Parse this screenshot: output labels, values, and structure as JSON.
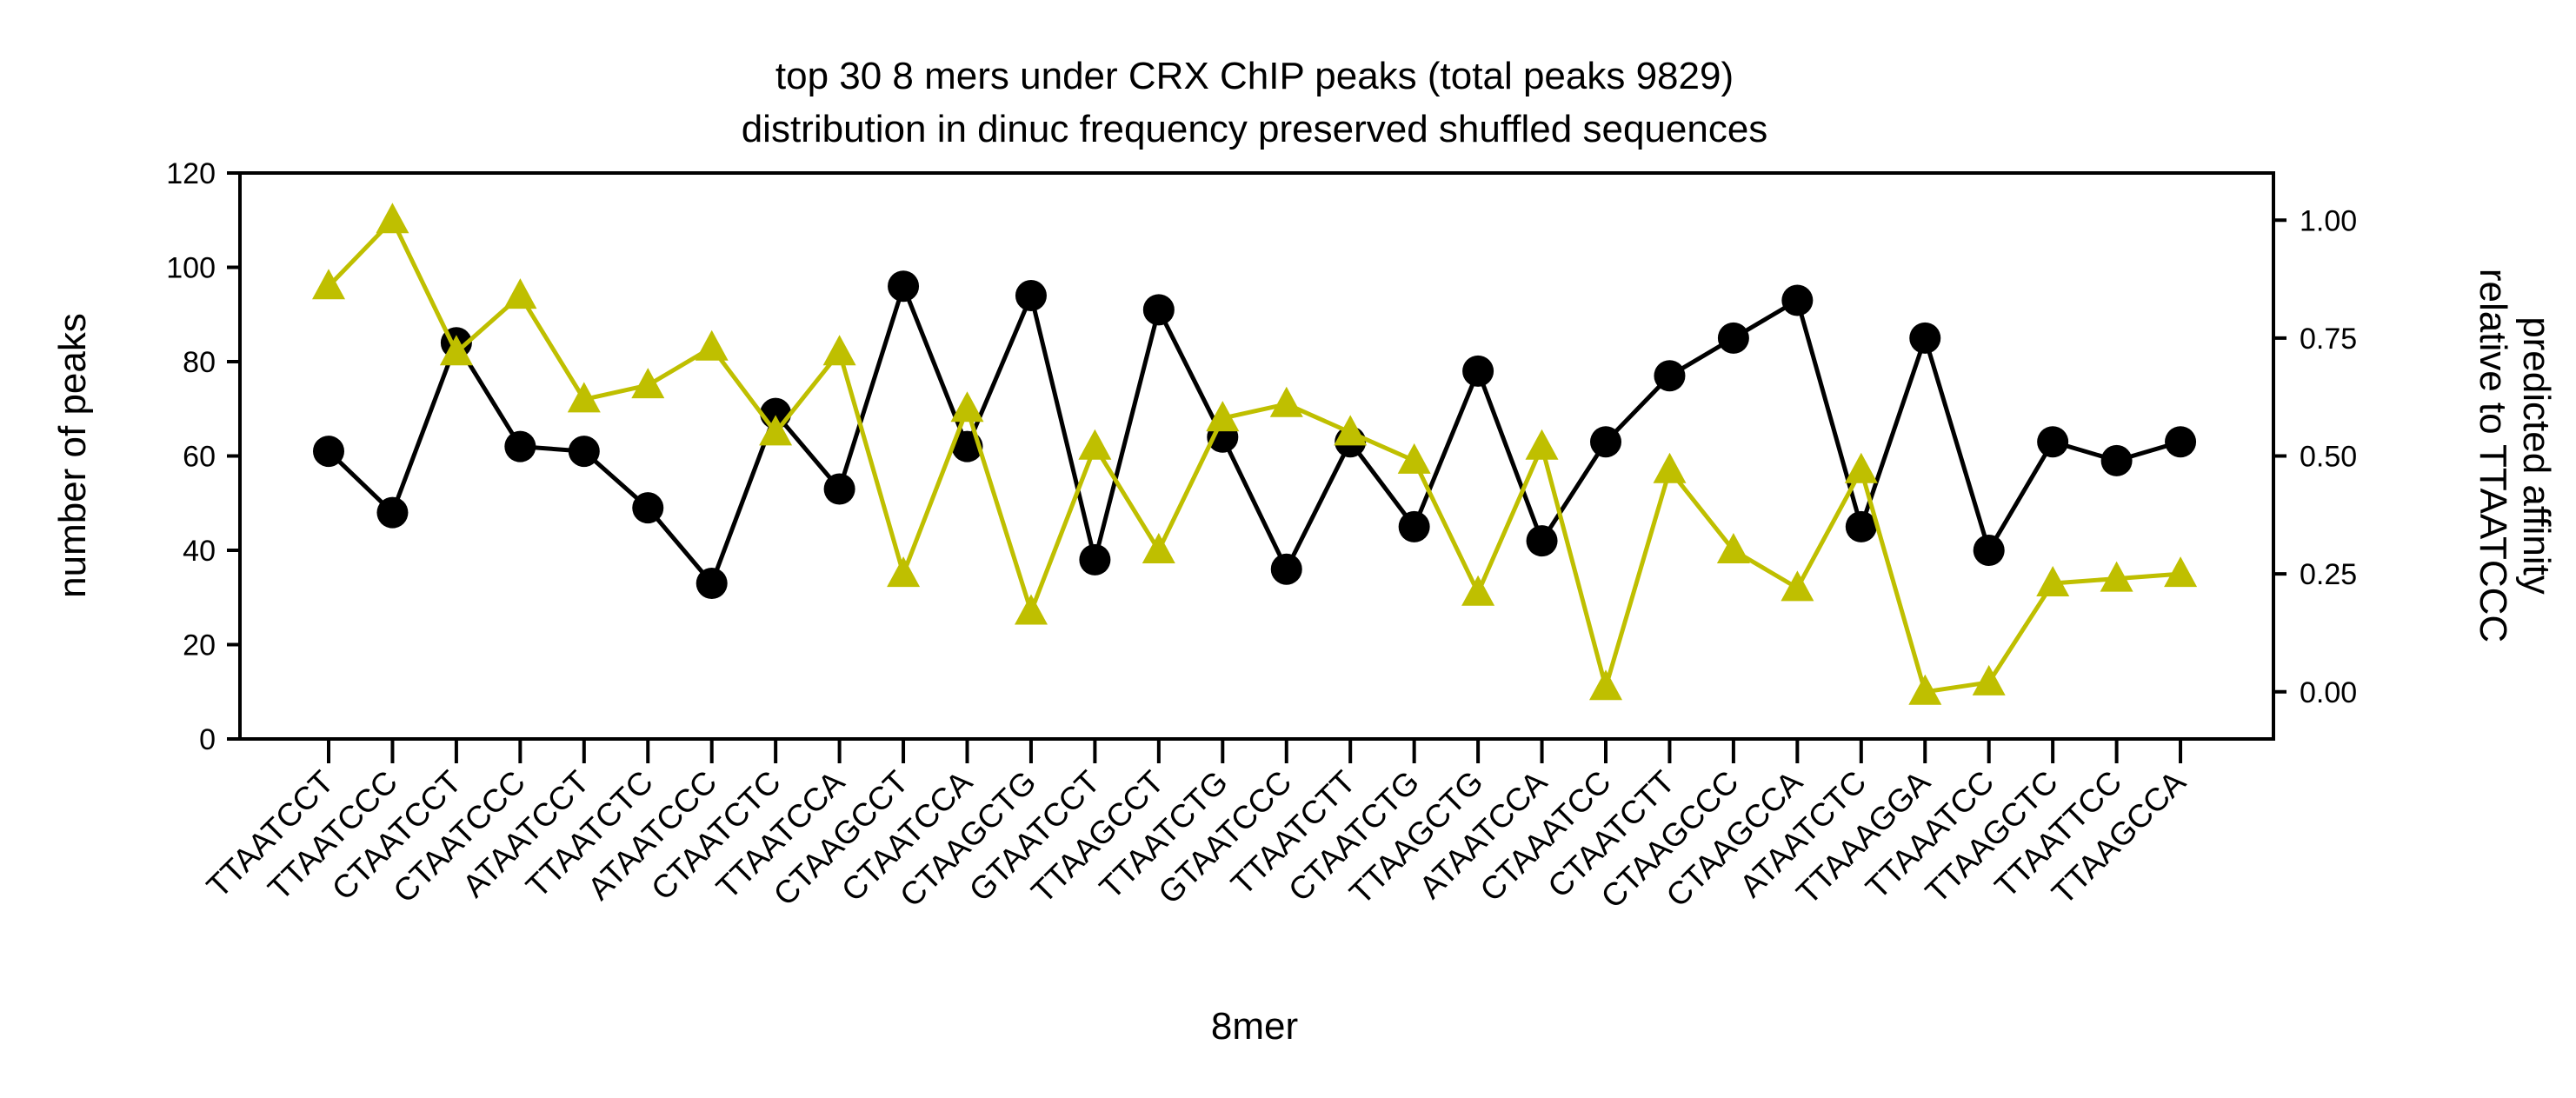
{
  "chart_data": {
    "type": "line",
    "title": "top 30 8 mers under CRX ChIP peaks (total peaks 9829)",
    "subtitle": "distribution in dinuc frequency preserved shuffled sequences",
    "xlabel": "8mer",
    "ylabel": "number of peaks",
    "ylabel_right_line1": "predicted affinity",
    "ylabel_right_line2": "relative to TTAATCCC",
    "ylim": [
      0,
      120
    ],
    "ylim_right": [
      -0.1,
      1.1
    ],
    "y_ticks": [
      "0",
      "20",
      "40",
      "60",
      "80",
      "100",
      "120"
    ],
    "y_right_ticks": [
      "0.00",
      "0.25",
      "0.50",
      "0.75",
      "1.00"
    ],
    "grid": false,
    "categories": [
      "TTAATCCT",
      "TTAATCCC",
      "CTAATCCT",
      "CTAATCCC",
      "ATAATCCT",
      "TTAATCTC",
      "ATAATCCC",
      "CTAATCTC",
      "TTAATCCA",
      "CTAAGCCT",
      "CTAATCCA",
      "CTAAGCTG",
      "GTAATCCT",
      "TTAAGCCT",
      "TTAATCTG",
      "GTAATCCC",
      "TTAATCTT",
      "CTAATCTG",
      "TTAAGCTG",
      "ATAATCCA",
      "CTAAATCC",
      "CTAATCTT",
      "CTAAGCCC",
      "CTAAGCCA",
      "ATAATCTC",
      "TTAAAGGA",
      "TTAAATCC",
      "TTAAGCTC",
      "TTAATTCC",
      "TTAAGCCA"
    ],
    "series": [
      {
        "axis": "left",
        "color": "#000000",
        "marker": "circle",
        "values": [
          61,
          48,
          84,
          62,
          61,
          49,
          33,
          69,
          53,
          96,
          62,
          94,
          38,
          91,
          64,
          36,
          63,
          45,
          78,
          42,
          63,
          77,
          85,
          93,
          45,
          85,
          40,
          63,
          59,
          63
        ]
      },
      {
        "axis": "right",
        "color": "#bfbf00",
        "marker": "triangle",
        "values": [
          0.86,
          1.0,
          0.72,
          0.84,
          0.62,
          0.65,
          0.73,
          0.55,
          0.72,
          0.25,
          0.6,
          0.17,
          0.52,
          0.3,
          0.58,
          0.61,
          0.55,
          0.49,
          0.21,
          0.52,
          0.01,
          0.47,
          0.3,
          0.22,
          0.47,
          0.0,
          0.02,
          0.23,
          0.24,
          0.25
        ]
      }
    ]
  }
}
